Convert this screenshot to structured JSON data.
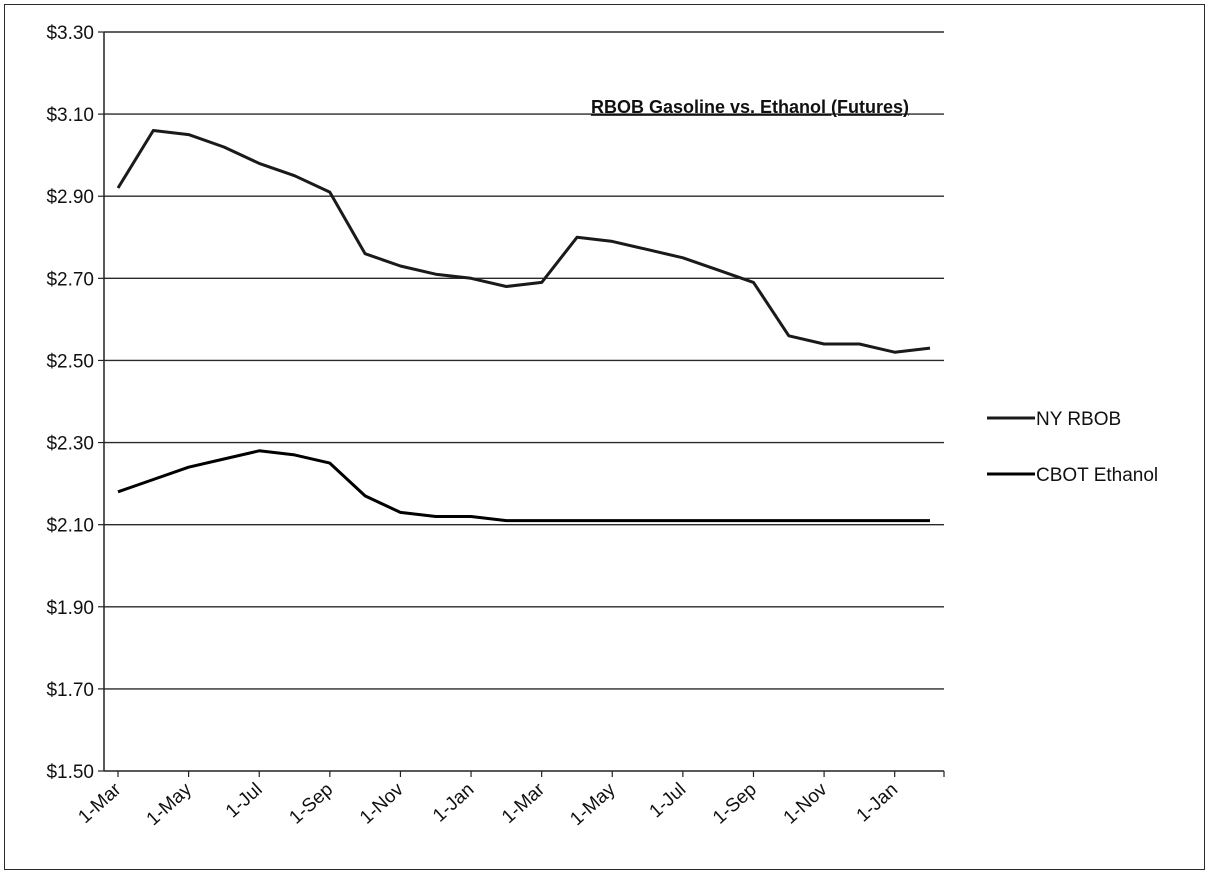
{
  "chart_data": {
    "type": "line",
    "title": "RBOB Gasoline vs. Ethanol  (Futures)",
    "x_ticks": [
      "1-Mar",
      "1-May",
      "1-Jul",
      "1-Sep",
      "1-Nov",
      "1-Jan",
      "1-Mar",
      "1-May",
      "1-Jul",
      "1-Sep",
      "1-Nov",
      "1-Jan"
    ],
    "y_ticks": [
      "$3.30",
      "$3.10",
      "$2.90",
      "$2.70",
      "$2.50",
      "$2.30",
      "$2.10",
      "$1.90",
      "$1.70",
      "$1.50"
    ],
    "ylim": [
      1.5,
      3.3
    ],
    "grid": true,
    "legend_position": "right",
    "series": [
      {
        "name": "NY RBOB",
        "color": "#1a1a1a",
        "points": [
          {
            "x": "Mar",
            "y": 2.92
          },
          {
            "x": "Apr",
            "y": 3.06
          },
          {
            "x": "May",
            "y": 3.05
          },
          {
            "x": "Jun",
            "y": 3.02
          },
          {
            "x": "Jul",
            "y": 2.98
          },
          {
            "x": "Aug",
            "y": 2.95
          },
          {
            "x": "Sep",
            "y": 2.91
          },
          {
            "x": "Oct",
            "y": 2.76
          },
          {
            "x": "Nov",
            "y": 2.73
          },
          {
            "x": "Dec",
            "y": 2.71
          },
          {
            "x": "Jan",
            "y": 2.7
          },
          {
            "x": "Feb",
            "y": 2.68
          },
          {
            "x": "Mar",
            "y": 2.69
          },
          {
            "x": "Apr",
            "y": 2.8
          },
          {
            "x": "May",
            "y": 2.79
          },
          {
            "x": "Jun",
            "y": 2.77
          },
          {
            "x": "Jul",
            "y": 2.75
          },
          {
            "x": "Aug",
            "y": 2.72
          },
          {
            "x": "Sep",
            "y": 2.69
          },
          {
            "x": "Oct",
            "y": 2.56
          },
          {
            "x": "Nov",
            "y": 2.54
          },
          {
            "x": "Dec",
            "y": 2.54
          },
          {
            "x": "Jan",
            "y": 2.52
          },
          {
            "x": "Feb",
            "y": 2.53
          }
        ]
      },
      {
        "name": "CBOT Ethanol",
        "color": "#000000",
        "points": [
          {
            "x": "Mar",
            "y": 2.18
          },
          {
            "x": "Apr",
            "y": 2.21
          },
          {
            "x": "May",
            "y": 2.24
          },
          {
            "x": "Jun",
            "y": 2.26
          },
          {
            "x": "Jul",
            "y": 2.28
          },
          {
            "x": "Aug",
            "y": 2.27
          },
          {
            "x": "Sep",
            "y": 2.25
          },
          {
            "x": "Oct",
            "y": 2.17
          },
          {
            "x": "Nov",
            "y": 2.13
          },
          {
            "x": "Dec",
            "y": 2.12
          },
          {
            "x": "Jan",
            "y": 2.12
          },
          {
            "x": "Feb",
            "y": 2.11
          },
          {
            "x": "Mar",
            "y": 2.11
          },
          {
            "x": "Apr",
            "y": 2.11
          },
          {
            "x": "May",
            "y": 2.11
          },
          {
            "x": "Jun",
            "y": 2.11
          },
          {
            "x": "Jul",
            "y": 2.11
          },
          {
            "x": "Aug",
            "y": 2.11
          },
          {
            "x": "Sep",
            "y": 2.11
          },
          {
            "x": "Oct",
            "y": 2.11
          },
          {
            "x": "Nov",
            "y": 2.11
          },
          {
            "x": "Dec",
            "y": 2.11
          },
          {
            "x": "Jan",
            "y": 2.11
          },
          {
            "x": "Feb",
            "y": 2.11
          }
        ]
      }
    ]
  }
}
